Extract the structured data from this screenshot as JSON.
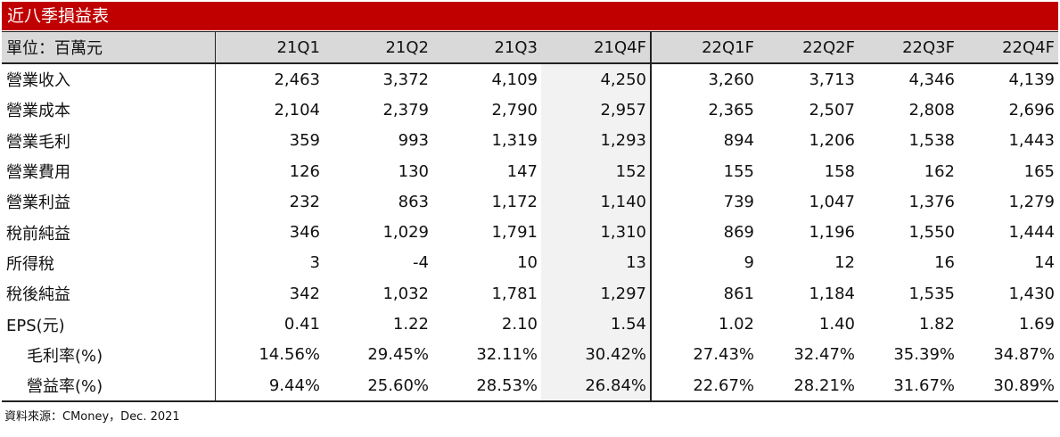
{
  "title": "近八季損益表",
  "header": {
    "unit_label": "單位：百萬元",
    "columns": [
      "21Q1",
      "21Q2",
      "21Q3",
      "21Q4F",
      "22Q1F",
      "22Q2F",
      "22Q3F",
      "22Q4F"
    ]
  },
  "rows": [
    {
      "label": "營業收入",
      "values": [
        "2,463",
        "3,372",
        "4,109",
        "4,250",
        "3,260",
        "3,713",
        "4,346",
        "4,139"
      ]
    },
    {
      "label": "營業成本",
      "values": [
        "2,104",
        "2,379",
        "2,790",
        "2,957",
        "2,365",
        "2,507",
        "2,808",
        "2,696"
      ]
    },
    {
      "label": "營業毛利",
      "values": [
        "359",
        "993",
        "1,319",
        "1,293",
        "894",
        "1,206",
        "1,538",
        "1,443"
      ]
    },
    {
      "label": "營業費用",
      "values": [
        "126",
        "130",
        "147",
        "152",
        "155",
        "158",
        "162",
        "165"
      ]
    },
    {
      "label": "營業利益",
      "values": [
        "232",
        "863",
        "1,172",
        "1,140",
        "739",
        "1,047",
        "1,376",
        "1,279"
      ]
    },
    {
      "label": "稅前純益",
      "values": [
        "346",
        "1,029",
        "1,791",
        "1,310",
        "869",
        "1,196",
        "1,550",
        "1,444"
      ]
    },
    {
      "label": "所得稅",
      "values": [
        "3",
        "-4",
        "10",
        "13",
        "9",
        "12",
        "16",
        "14"
      ]
    },
    {
      "label": "稅後純益",
      "values": [
        "342",
        "1,032",
        "1,781",
        "1,297",
        "861",
        "1,184",
        "1,535",
        "1,430"
      ]
    },
    {
      "label": "EPS(元)",
      "values": [
        "0.41",
        "1.22",
        "2.10",
        "1.54",
        "1.02",
        "1.40",
        "1.82",
        "1.69"
      ]
    },
    {
      "label": "毛利率(%)",
      "values": [
        "14.56%",
        "29.45%",
        "32.11%",
        "30.42%",
        "27.43%",
        "32.47%",
        "35.39%",
        "34.87%"
      ]
    },
    {
      "label": "營益率(%)",
      "values": [
        "9.44%",
        "25.60%",
        "28.53%",
        "26.84%",
        "22.67%",
        "28.21%",
        "31.67%",
        "30.89%"
      ]
    }
  ],
  "source": "資料來源：CMoney，Dec. 2021",
  "colors": {
    "title_bg": "#c00000",
    "header_bg": "#d9d9d9",
    "forecast_shade": "#f2f2f2"
  }
}
